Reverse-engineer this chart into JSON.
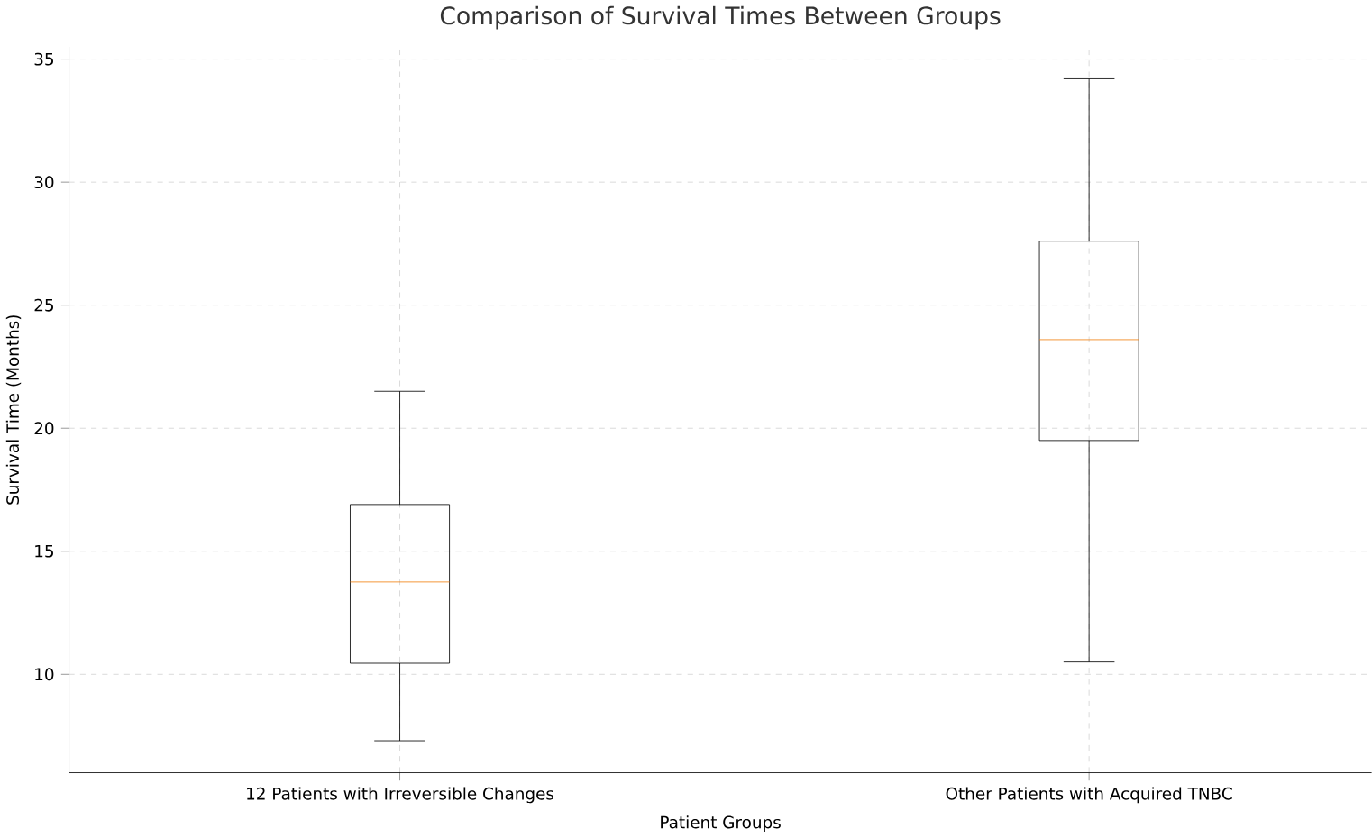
{
  "chart_data": {
    "type": "box",
    "title": "Comparison of Survival Times Between Groups",
    "xlabel": "Patient Groups",
    "ylabel": "Survival Time (Months)",
    "categories": [
      "12 Patients with Irreversible Changes",
      "Other Patients with Acquired TNBC"
    ],
    "series": [
      {
        "color": "#000000",
        "boxes": [
          {
            "low": 7.3,
            "q1": 10.45,
            "median": 13.75,
            "q3": 16.9,
            "high": 21.5
          },
          {
            "low": 10.5,
            "q1": 19.5,
            "median": 23.6,
            "q3": 27.6,
            "high": 34.2
          }
        ]
      }
    ],
    "ylim": [
      6,
      35.5
    ],
    "yticks": [
      10,
      15,
      20,
      25,
      30,
      35
    ],
    "grid": true
  }
}
